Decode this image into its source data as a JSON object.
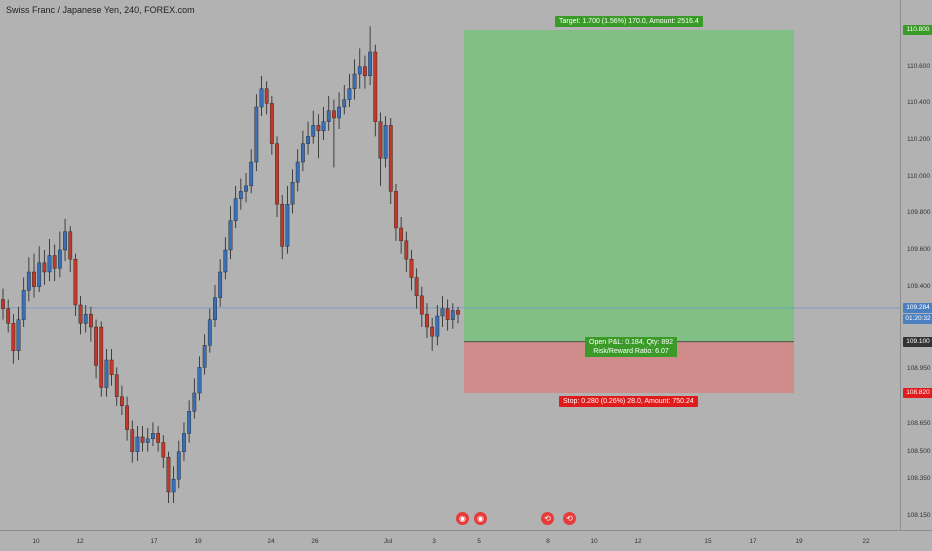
{
  "header": {
    "symbol_title": "Swiss Franc / Japanese Yen, 240, FOREX.com"
  },
  "colors": {
    "background": "#b2b2b2",
    "bull_candle": "#3a6fb5",
    "bear_candle": "#c0392b",
    "target_zone": "#82bf84",
    "stop_zone": "#d08b8b",
    "current_price_line": "#5b8fcf"
  },
  "position": {
    "target_label": "Target: 1.700 (1.56%) 170.0, Amount: 2516.4",
    "stop_label": "Stop: 0.280 (0.26%) 28.0, Amount: 750.24",
    "pnl_label": "Open P&L: 0.184, Qty: 892",
    "rr_label": "Risk/Reward Ratio: 6.07",
    "target_price": 110.8,
    "entry_price": 109.1,
    "stop_price": 108.82
  },
  "price_axis": {
    "ticks": [
      "110.600",
      "110.400",
      "110.200",
      "110.000",
      "109.800",
      "109.600",
      "109.400",
      "109.200",
      "108.950",
      "108.650",
      "108.500",
      "108.350",
      "108.150"
    ],
    "target_badge": "110.800",
    "current_price_badge": "109.284",
    "countdown_badge": "01:20:32",
    "entry_badge": "109.100",
    "stop_badge": "108.820"
  },
  "time_axis": {
    "ticks": [
      "10",
      "12",
      "17",
      "19",
      "24",
      "26",
      "Jul",
      "3",
      "5",
      "8",
      "10",
      "12",
      "15",
      "17",
      "19",
      "22"
    ]
  },
  "events": {
    "icons": [
      "dividend-icon",
      "dividend-icon",
      "split-icon",
      "split-icon"
    ]
  },
  "chart_data": {
    "type": "candlestick",
    "title": "Swiss Franc / Japanese Yen, 240, FOREX.com",
    "ylim": [
      108.1,
      110.85
    ],
    "current_price": 109.284,
    "candles": [
      [
        109.33,
        109.28,
        109.39,
        109.22
      ],
      [
        109.28,
        109.2,
        109.33,
        109.15
      ],
      [
        109.2,
        109.05,
        109.25,
        108.98
      ],
      [
        109.05,
        109.22,
        109.29,
        109.0
      ],
      [
        109.22,
        109.38,
        109.45,
        109.18
      ],
      [
        109.38,
        109.48,
        109.56,
        109.32
      ],
      [
        109.48,
        109.4,
        109.58,
        109.34
      ],
      [
        109.4,
        109.53,
        109.62,
        109.37
      ],
      [
        109.53,
        109.48,
        109.6,
        109.41
      ],
      [
        109.48,
        109.57,
        109.66,
        109.43
      ],
      [
        109.57,
        109.5,
        109.63,
        109.43
      ],
      [
        109.5,
        109.6,
        109.7,
        109.45
      ],
      [
        109.6,
        109.7,
        109.77,
        109.54
      ],
      [
        109.7,
        109.55,
        109.73,
        109.48
      ],
      [
        109.55,
        109.3,
        109.58,
        109.24
      ],
      [
        109.3,
        109.2,
        109.35,
        109.14
      ],
      [
        109.2,
        109.25,
        109.3,
        109.15
      ],
      [
        109.25,
        109.18,
        109.29,
        109.1
      ],
      [
        109.18,
        108.97,
        109.22,
        108.9
      ],
      [
        109.18,
        108.85,
        109.21,
        108.8
      ],
      [
        108.85,
        109.0,
        109.06,
        108.8
      ],
      [
        109.0,
        108.92,
        109.06,
        108.86
      ],
      [
        108.92,
        108.8,
        108.96,
        108.75
      ],
      [
        108.8,
        108.75,
        108.86,
        108.7
      ],
      [
        108.75,
        108.62,
        108.8,
        108.56
      ],
      [
        108.62,
        108.5,
        108.67,
        108.44
      ],
      [
        108.5,
        108.58,
        108.64,
        108.45
      ],
      [
        108.58,
        108.55,
        108.64,
        108.5
      ],
      [
        108.55,
        108.57,
        108.63,
        108.5
      ],
      [
        108.57,
        108.6,
        108.66,
        108.53
      ],
      [
        108.6,
        108.55,
        108.64,
        108.5
      ],
      [
        108.55,
        108.47,
        108.59,
        108.41
      ],
      [
        108.47,
        108.28,
        108.5,
        108.22
      ],
      [
        108.28,
        108.35,
        108.42,
        108.22
      ],
      [
        108.35,
        108.5,
        108.56,
        108.3
      ],
      [
        108.5,
        108.6,
        108.66,
        108.45
      ],
      [
        108.6,
        108.72,
        108.78,
        108.55
      ],
      [
        108.72,
        108.82,
        108.9,
        108.68
      ],
      [
        108.82,
        108.96,
        109.02,
        108.78
      ],
      [
        108.96,
        109.08,
        109.14,
        108.92
      ],
      [
        109.08,
        109.22,
        109.28,
        109.04
      ],
      [
        109.22,
        109.34,
        109.41,
        109.18
      ],
      [
        109.34,
        109.48,
        109.55,
        109.29
      ],
      [
        109.48,
        109.6,
        109.67,
        109.44
      ],
      [
        109.6,
        109.76,
        109.84,
        109.55
      ],
      [
        109.76,
        109.88,
        109.95,
        109.72
      ],
      [
        109.88,
        109.92,
        109.99,
        109.82
      ],
      [
        109.92,
        109.95,
        110.02,
        109.86
      ],
      [
        109.95,
        110.08,
        110.15,
        109.91
      ],
      [
        110.08,
        110.38,
        110.45,
        110.03
      ],
      [
        110.38,
        110.48,
        110.55,
        110.33
      ],
      [
        110.48,
        110.4,
        110.52,
        110.34
      ],
      [
        110.4,
        110.18,
        110.44,
        110.12
      ],
      [
        110.18,
        109.85,
        110.22,
        109.78
      ],
      [
        109.85,
        109.62,
        109.9,
        109.55
      ],
      [
        109.62,
        109.85,
        109.95,
        109.58
      ],
      [
        109.85,
        109.97,
        110.04,
        109.8
      ],
      [
        109.97,
        110.08,
        110.15,
        109.92
      ],
      [
        110.08,
        110.18,
        110.25,
        110.03
      ],
      [
        110.18,
        110.22,
        110.3,
        110.12
      ],
      [
        110.22,
        110.28,
        110.36,
        110.18
      ],
      [
        110.28,
        110.25,
        110.34,
        110.1
      ],
      [
        110.25,
        110.3,
        110.38,
        110.2
      ],
      [
        110.3,
        110.36,
        110.44,
        110.25
      ],
      [
        110.36,
        110.32,
        110.42,
        110.05
      ],
      [
        110.32,
        110.38,
        110.46,
        110.26
      ],
      [
        110.38,
        110.42,
        110.5,
        110.34
      ],
      [
        110.42,
        110.48,
        110.56,
        110.38
      ],
      [
        110.48,
        110.56,
        110.64,
        110.42
      ],
      [
        110.56,
        110.6,
        110.7,
        110.48
      ],
      [
        110.6,
        110.55,
        110.66,
        110.48
      ],
      [
        110.55,
        110.68,
        110.82,
        110.5
      ],
      [
        110.68,
        110.3,
        110.72,
        110.22
      ],
      [
        110.3,
        110.1,
        110.35,
        109.95
      ],
      [
        110.1,
        110.28,
        110.33,
        110.05
      ],
      [
        110.28,
        109.92,
        110.32,
        109.85
      ],
      [
        109.92,
        109.72,
        109.96,
        109.65
      ],
      [
        109.72,
        109.65,
        109.78,
        109.58
      ],
      [
        109.65,
        109.55,
        109.7,
        109.48
      ],
      [
        109.55,
        109.45,
        109.6,
        109.38
      ],
      [
        109.45,
        109.35,
        109.5,
        109.28
      ],
      [
        109.35,
        109.25,
        109.4,
        109.18
      ],
      [
        109.25,
        109.18,
        109.31,
        109.12
      ],
      [
        109.18,
        109.13,
        109.23,
        109.05
      ],
      [
        109.13,
        109.24,
        109.3,
        109.08
      ],
      [
        109.24,
        109.28,
        109.35,
        109.18
      ],
      [
        109.28,
        109.22,
        109.33,
        109.16
      ],
      [
        109.22,
        109.27,
        109.31,
        109.17
      ],
      [
        109.27,
        109.25,
        109.29,
        109.2
      ]
    ]
  }
}
